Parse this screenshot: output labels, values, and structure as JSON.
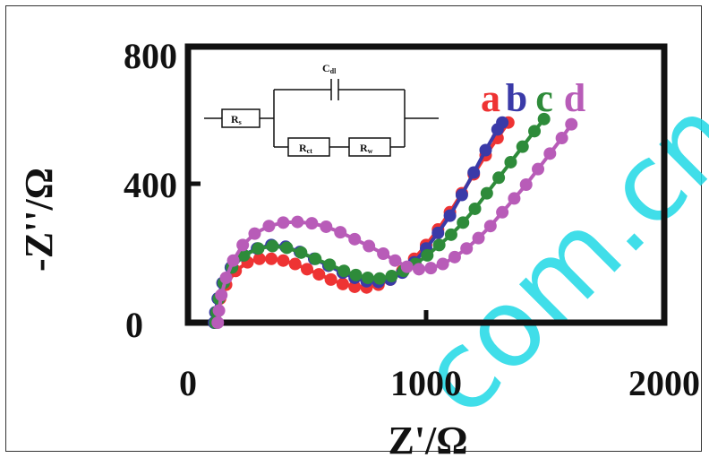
{
  "chart_data": {
    "type": "scatter",
    "title": "",
    "xlabel": "Z'/Ω",
    "ylabel": "-Z''/Ω",
    "xlim": [
      0,
      2000
    ],
    "ylim": [
      0,
      800
    ],
    "x_ticks": [
      "0",
      "1000",
      "2000"
    ],
    "y_ticks": [
      "0",
      "400",
      "800"
    ],
    "grid": false,
    "series": [
      {
        "name": "a",
        "color": "#ee3333",
        "points": [
          [
            115,
            0
          ],
          [
            120,
            30
          ],
          [
            135,
            70
          ],
          [
            160,
            110
          ],
          [
            200,
            150
          ],
          [
            250,
            175
          ],
          [
            300,
            185
          ],
          [
            350,
            185
          ],
          [
            400,
            180
          ],
          [
            450,
            170
          ],
          [
            500,
            155
          ],
          [
            550,
            140
          ],
          [
            600,
            125
          ],
          [
            650,
            112
          ],
          [
            700,
            104
          ],
          [
            750,
            102
          ],
          [
            800,
            110
          ],
          [
            850,
            125
          ],
          [
            900,
            150
          ],
          [
            950,
            185
          ],
          [
            1000,
            225
          ],
          [
            1050,
            270
          ],
          [
            1100,
            320
          ],
          [
            1150,
            375
          ],
          [
            1200,
            430
          ],
          [
            1250,
            485
          ],
          [
            1300,
            535
          ],
          [
            1345,
            580
          ]
        ]
      },
      {
        "name": "b",
        "color": "#3a3aa8",
        "points": [
          [
            110,
            0
          ],
          [
            115,
            30
          ],
          [
            125,
            70
          ],
          [
            145,
            115
          ],
          [
            180,
            160
          ],
          [
            230,
            195
          ],
          [
            290,
            215
          ],
          [
            350,
            225
          ],
          [
            410,
            220
          ],
          [
            470,
            205
          ],
          [
            530,
            185
          ],
          [
            590,
            165
          ],
          [
            650,
            145
          ],
          [
            700,
            130
          ],
          [
            750,
            120
          ],
          [
            800,
            118
          ],
          [
            850,
            125
          ],
          [
            900,
            145
          ],
          [
            950,
            175
          ],
          [
            1000,
            215
          ],
          [
            1050,
            260
          ],
          [
            1100,
            310
          ],
          [
            1150,
            370
          ],
          [
            1200,
            435
          ],
          [
            1250,
            500
          ],
          [
            1300,
            560
          ],
          [
            1320,
            580
          ]
        ]
      },
      {
        "name": "c",
        "color": "#2e8b3a",
        "points": [
          [
            115,
            0
          ],
          [
            120,
            30
          ],
          [
            130,
            70
          ],
          [
            150,
            115
          ],
          [
            185,
            160
          ],
          [
            235,
            195
          ],
          [
            295,
            215
          ],
          [
            355,
            222
          ],
          [
            415,
            217
          ],
          [
            475,
            203
          ],
          [
            535,
            185
          ],
          [
            595,
            168
          ],
          [
            655,
            150
          ],
          [
            705,
            138
          ],
          [
            755,
            130
          ],
          [
            805,
            128
          ],
          [
            855,
            135
          ],
          [
            905,
            150
          ],
          [
            955,
            170
          ],
          [
            1005,
            195
          ],
          [
            1055,
            225
          ],
          [
            1105,
            255
          ],
          [
            1155,
            290
          ],
          [
            1205,
            330
          ],
          [
            1255,
            375
          ],
          [
            1305,
            420
          ],
          [
            1355,
            465
          ],
          [
            1405,
            510
          ],
          [
            1455,
            555
          ],
          [
            1495,
            590
          ]
        ]
      },
      {
        "name": "d",
        "color": "#b85cb8",
        "points": [
          [
            125,
            0
          ],
          [
            130,
            35
          ],
          [
            140,
            80
          ],
          [
            160,
            130
          ],
          [
            190,
            180
          ],
          [
            230,
            225
          ],
          [
            280,
            258
          ],
          [
            340,
            280
          ],
          [
            400,
            290
          ],
          [
            460,
            292
          ],
          [
            520,
            288
          ],
          [
            580,
            278
          ],
          [
            640,
            262
          ],
          [
            700,
            242
          ],
          [
            760,
            222
          ],
          [
            820,
            200
          ],
          [
            870,
            180
          ],
          [
            920,
            162
          ],
          [
            970,
            155
          ],
          [
            1020,
            158
          ],
          [
            1070,
            170
          ],
          [
            1120,
            190
          ],
          [
            1170,
            215
          ],
          [
            1220,
            245
          ],
          [
            1270,
            280
          ],
          [
            1320,
            320
          ],
          [
            1370,
            360
          ],
          [
            1420,
            400
          ],
          [
            1470,
            445
          ],
          [
            1520,
            490
          ],
          [
            1570,
            535
          ],
          [
            1610,
            575
          ]
        ]
      }
    ],
    "legend_placement": "top-right",
    "inset_circuit": {
      "labels": [
        "Cdl",
        "Rs",
        "Rct",
        "Rw"
      ]
    }
  },
  "watermark": "com.cn"
}
